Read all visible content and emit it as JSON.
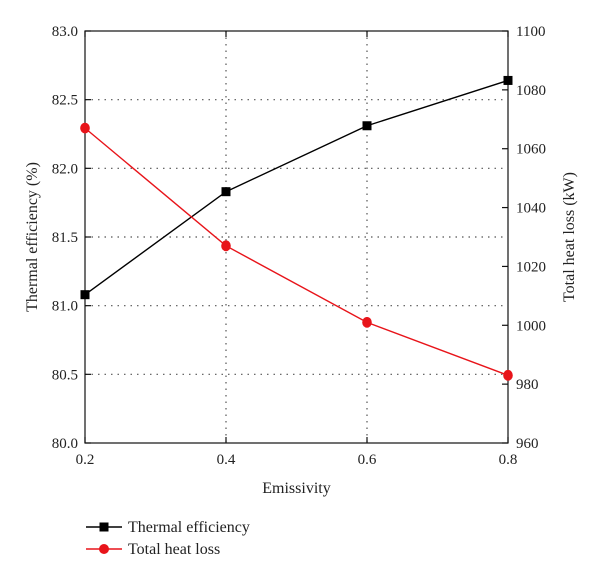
{
  "chart_data": {
    "type": "line",
    "xlabel": "Emissivity",
    "ylabel_left": "Thermal efficiency (%)",
    "ylabel_right": "Total heat loss (kW)",
    "xlim": [
      0.2,
      0.8
    ],
    "ylim_left": [
      80.0,
      83.0
    ],
    "ylim_right": [
      960,
      1100
    ],
    "x_ticks": [
      "0.2",
      "0.4",
      "0.6",
      "0.8"
    ],
    "left_ticks": [
      "80.0",
      "80.5",
      "81.0",
      "81.5",
      "82.0",
      "82.5",
      "83.0"
    ],
    "right_ticks": [
      "960",
      "980",
      "1000",
      "1020",
      "1040",
      "1060",
      "1080",
      "1100"
    ],
    "grid": true,
    "legend_position": "bottom-left",
    "x": [
      0.2,
      0.4,
      0.6,
      0.8
    ],
    "series": [
      {
        "name": "Thermal efficiency",
        "axis": "left",
        "marker": "square",
        "color": "#000000",
        "values": [
          81.08,
          81.83,
          82.31,
          82.64
        ]
      },
      {
        "name": "Total heat loss",
        "axis": "right",
        "marker": "circle",
        "color": "#e8141a",
        "values": [
          1067,
          1027,
          1001,
          983
        ]
      }
    ]
  }
}
